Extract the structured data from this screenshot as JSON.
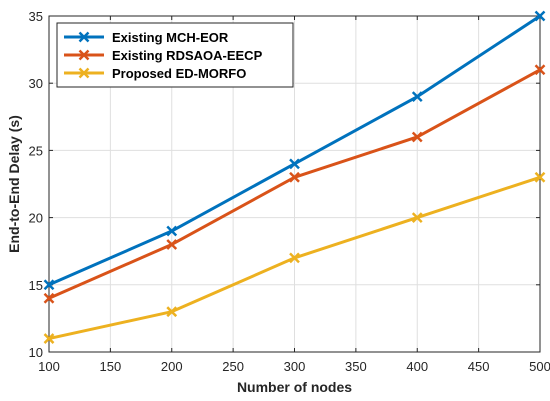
{
  "chart_data": {
    "type": "line",
    "title": "",
    "xlabel": "Number of nodes",
    "ylabel": "End-to-End Delay (s)",
    "xlim": [
      100,
      500
    ],
    "ylim": [
      10,
      35
    ],
    "xticks": [
      100,
      150,
      200,
      250,
      300,
      350,
      400,
      450,
      500
    ],
    "yticks": [
      10,
      15,
      20,
      25,
      30,
      35
    ],
    "grid": true,
    "legend_position": "top-left",
    "series": [
      {
        "name": "Existing MCH-EOR",
        "color": "#0072BD",
        "marker": "x",
        "x": [
          100,
          200,
          300,
          400,
          500
        ],
        "y": [
          15,
          19,
          24,
          29,
          35
        ]
      },
      {
        "name": "Existing RDSAOA-EECP",
        "color": "#D95319",
        "marker": "x",
        "x": [
          100,
          200,
          300,
          400,
          500
        ],
        "y": [
          14,
          18,
          23,
          26,
          31
        ]
      },
      {
        "name": "Proposed ED-MORFO",
        "color": "#EDB120",
        "marker": "x",
        "x": [
          100,
          200,
          300,
          400,
          500
        ],
        "y": [
          11,
          13,
          17,
          20,
          23
        ]
      }
    ]
  }
}
